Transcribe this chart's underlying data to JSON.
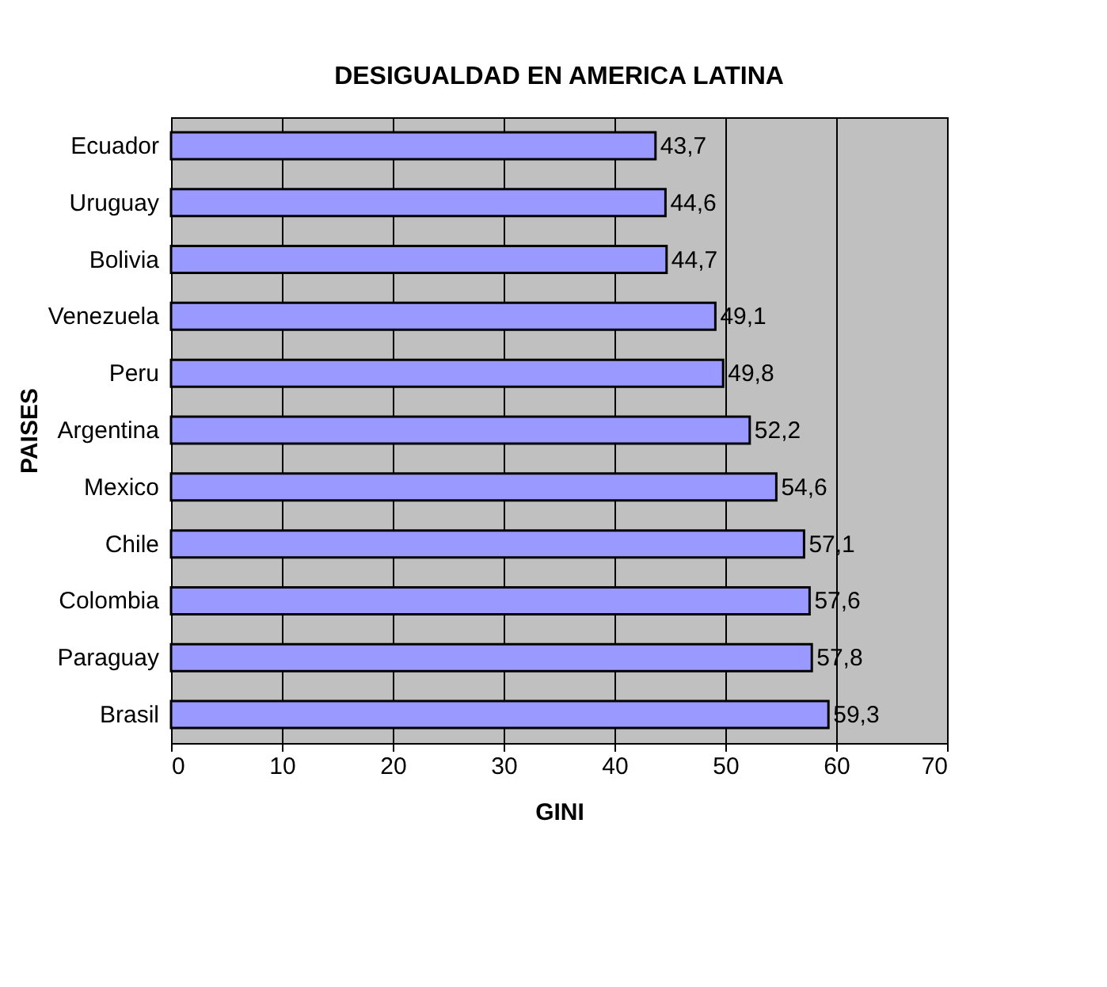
{
  "chart_data": {
    "type": "bar",
    "orientation": "horizontal",
    "title": "DESIGUALDAD EN AMERICA LATINA",
    "xlabel": "GINI",
    "ylabel": "PAISES",
    "categories": [
      "Ecuador",
      "Uruguay",
      "Bolivia",
      "Venezuela",
      "Peru",
      "Argentina",
      "Mexico",
      "Chile",
      "Colombia",
      "Paraguay",
      "Brasil"
    ],
    "values": [
      43.7,
      44.6,
      44.7,
      49.1,
      49.8,
      52.2,
      54.6,
      57.1,
      57.6,
      57.8,
      59.3
    ],
    "value_labels": [
      "43,7",
      "44,6",
      "44,7",
      "49,1",
      "49,8",
      "52,2",
      "54,6",
      "57,1",
      "57,6",
      "57,8",
      "59,3"
    ],
    "color": "#9999ff",
    "xlim": [
      0,
      70
    ],
    "xticks": [
      0,
      10,
      20,
      30,
      40,
      50,
      60,
      70
    ],
    "grid": "x",
    "legend": false
  }
}
